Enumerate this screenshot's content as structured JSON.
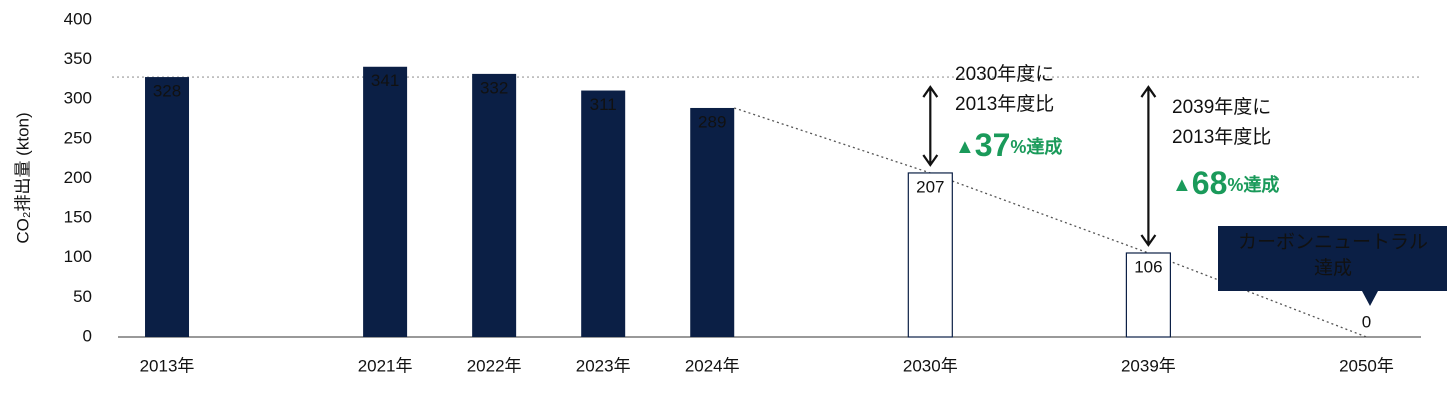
{
  "chart_data": {
    "type": "bar",
    "y_label": "CO₂排出量 (kton)",
    "categories": [
      "2013年",
      null,
      "2021年",
      "2022年",
      "2023年",
      "2024年",
      null,
      "2030年",
      null,
      "2039年",
      null,
      "2050年"
    ],
    "series": [
      {
        "color": "#0b1f45",
        "outline": false,
        "values": [
          328,
          null,
          341,
          332,
          311,
          289,
          null,
          null,
          null,
          null,
          null,
          null
        ]
      },
      {
        "color": "#0b1f45",
        "outline": true,
        "values": [
          null,
          null,
          null,
          null,
          null,
          null,
          null,
          207,
          null,
          106,
          null,
          0
        ]
      }
    ],
    "ylim": [
      0,
      400
    ],
    "yticks": [
      0,
      50,
      100,
      150,
      200,
      250,
      300,
      350,
      400
    ],
    "annotations": [
      {
        "lines": [
          "2030年度に",
          "2013年度比"
        ],
        "mark": "▲",
        "number": "37",
        "suffix": "%達成"
      },
      {
        "lines": [
          "2039年度に",
          "2013年度比"
        ],
        "mark": "▲",
        "number": "68",
        "suffix": "%達成"
      }
    ],
    "callout": [
      "カーボンニュートラル",
      "達成"
    ]
  }
}
